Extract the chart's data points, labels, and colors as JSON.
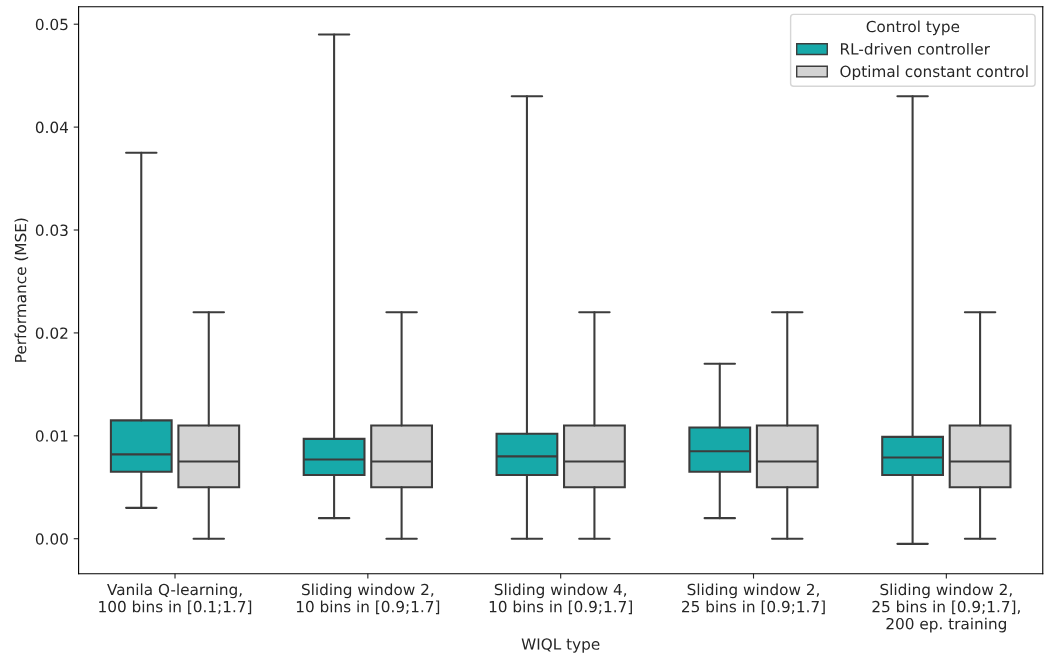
{
  "chart_data": {
    "type": "box",
    "xlabel": "WIQL type",
    "ylabel": "Performance (MSE)",
    "legend_title": "Control type",
    "legend": "top right",
    "grid": false,
    "categories": [
      "Vanila Q-learning,\n100 bins in [0.1;1.7]",
      "Sliding window 2,\n10 bins in [0.9;1.7]",
      "Sliding window 4,\n10 bins in [0.9;1.7]",
      "Sliding window 2,\n25 bins in [0.9;1.7]",
      "Sliding window 2,\n25 bins in [0.9;1.7],\n200 ep. training"
    ],
    "ylim": [
      -0.0034,
      0.0517
    ],
    "yticks": [
      {
        "value": 0,
        "label": "0.00"
      },
      {
        "value": 0.01,
        "label": "0.01"
      },
      {
        "value": 0.02,
        "label": "0.02"
      },
      {
        "value": 0.03,
        "label": "0.03"
      },
      {
        "value": 0.04,
        "label": "0.04"
      },
      {
        "value": 0.05,
        "label": "0.05"
      }
    ],
    "series": [
      {
        "name": "RL-driven controller",
        "color": "#17a9a9",
        "boxes": [
          {
            "low": 0.003,
            "q1": 0.0065,
            "median": 0.0082,
            "q3": 0.0115,
            "high": 0.0375
          },
          {
            "low": 0.002,
            "q1": 0.0062,
            "median": 0.0077,
            "q3": 0.0097,
            "high": 0.049
          },
          {
            "low": 0.0,
            "q1": 0.0062,
            "median": 0.008,
            "q3": 0.0102,
            "high": 0.043
          },
          {
            "low": 0.002,
            "q1": 0.0065,
            "median": 0.0085,
            "q3": 0.0108,
            "high": 0.017
          },
          {
            "low": -0.0005,
            "q1": 0.0062,
            "median": 0.0079,
            "q3": 0.0099,
            "high": 0.043
          }
        ]
      },
      {
        "name": "Optimal constant control",
        "color": "#d3d3d3",
        "boxes": [
          {
            "low": 0.0,
            "q1": 0.005,
            "median": 0.0075,
            "q3": 0.011,
            "high": 0.022
          },
          {
            "low": 0.0,
            "q1": 0.005,
            "median": 0.0075,
            "q3": 0.011,
            "high": 0.022
          },
          {
            "low": 0.0,
            "q1": 0.005,
            "median": 0.0075,
            "q3": 0.011,
            "high": 0.022
          },
          {
            "low": 0.0,
            "q1": 0.005,
            "median": 0.0075,
            "q3": 0.011,
            "high": 0.022
          },
          {
            "low": 0.0,
            "q1": 0.005,
            "median": 0.0075,
            "q3": 0.011,
            "high": 0.022
          }
        ]
      }
    ]
  }
}
